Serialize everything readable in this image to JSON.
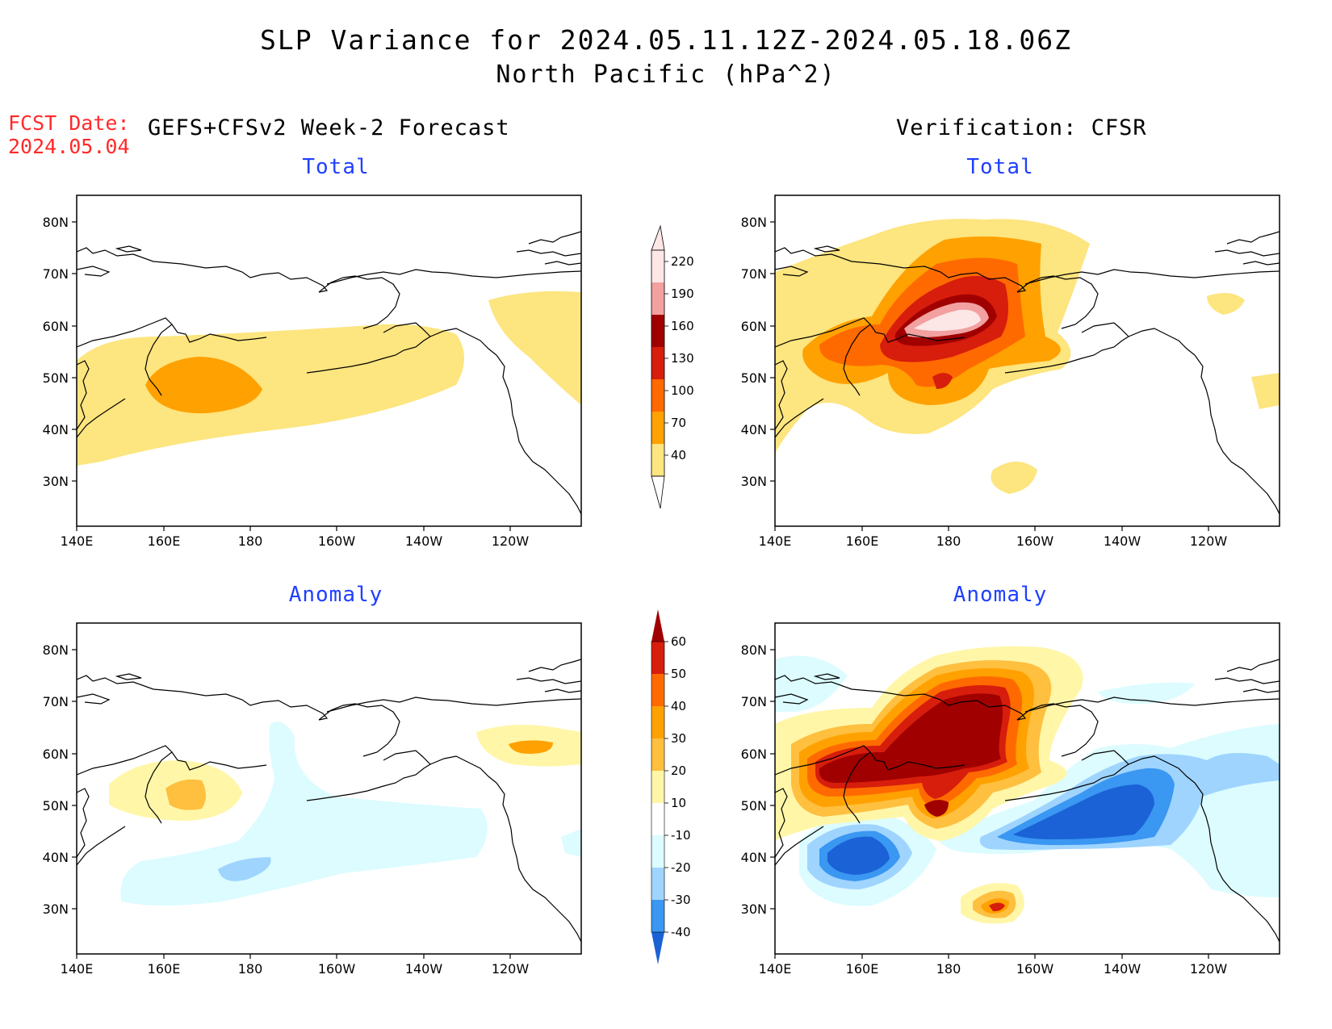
{
  "title": {
    "line1": "SLP Variance for 2024.05.11.12Z-2024.05.18.06Z",
    "line2": "North Pacific (hPa^2)"
  },
  "fcst": {
    "label": "FCST Date:",
    "date": "2024.05.04"
  },
  "columns": {
    "left_title": "GEFS+CFSv2 Week-2 Forecast",
    "right_title": "Verification: CFSR"
  },
  "panels": {
    "top_left": "Total",
    "top_right": "Total",
    "bottom_left": "Anomaly",
    "bottom_right": "Anomaly"
  },
  "axes": {
    "lat_ticks": [
      "80N",
      "70N",
      "60N",
      "50N",
      "40N",
      "30N"
    ],
    "lon_ticks": [
      "140E",
      "160E",
      "180",
      "160W",
      "140W",
      "120W"
    ]
  },
  "colorbars": {
    "total": {
      "labels": [
        "220",
        "190",
        "160",
        "130",
        "100",
        "70",
        "40"
      ],
      "colors": [
        "#fde6e6",
        "#f2a0a0",
        "#a00000",
        "#d71d0c",
        "#ff6a00",
        "#ffa100",
        "#fde57f"
      ]
    },
    "anomaly": {
      "labels": [
        "60",
        "50",
        "40",
        "30",
        "20",
        "10",
        "-10",
        "-20",
        "-30",
        "-40"
      ],
      "colors": [
        "#a00000",
        "#d71d0c",
        "#ff6a00",
        "#ffa100",
        "#ffbf3f",
        "#fff6a8",
        "#ffffff",
        "#dcfcff",
        "#9fd4ff",
        "#3a97f2",
        "#1a62d6"
      ]
    }
  }
}
